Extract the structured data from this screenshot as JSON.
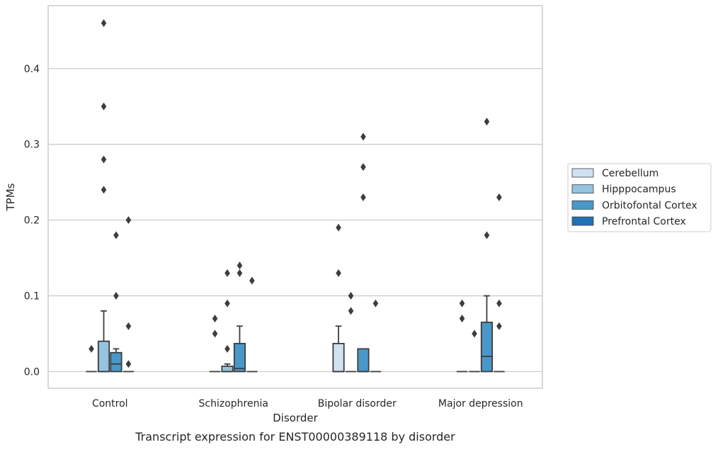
{
  "chart_data": {
    "type": "box",
    "title": "",
    "caption": "Transcript expression for ENST00000389118 by disorder",
    "xlabel": "Disorder",
    "ylabel": "TPMs",
    "ylim": [
      -0.022,
      0.483
    ],
    "yticks": [
      0.0,
      0.1,
      0.2,
      0.3,
      0.4
    ],
    "ytick_labels": [
      "0.0",
      "0.1",
      "0.2",
      "0.3",
      "0.4"
    ],
    "grid": "horizontal",
    "legend_position": "right",
    "categories": [
      "Control",
      "Schizophrenia",
      "Bipolar disorder",
      "Major depression"
    ],
    "series": [
      {
        "name": "Cerebellum",
        "color": "#d0e1f2",
        "boxes": [
          {
            "q1": 0,
            "median": 0,
            "q3": 0,
            "whisker_low": 0,
            "whisker_high": 0,
            "outliers": [
              0.03
            ]
          },
          {
            "q1": 0,
            "median": 0,
            "q3": 0,
            "whisker_low": 0,
            "whisker_high": 0,
            "outliers": [
              0.05,
              0.07
            ]
          },
          {
            "q1": 0,
            "median": 0,
            "q3": 0.037,
            "whisker_low": 0,
            "whisker_high": 0.06,
            "outliers": [
              0.13,
              0.19
            ]
          },
          {
            "q1": 0,
            "median": 0,
            "q3": 0,
            "whisker_low": 0,
            "whisker_high": 0,
            "outliers": [
              0.07,
              0.09
            ]
          }
        ]
      },
      {
        "name": "Hipppocampus",
        "color": "#94c4df",
        "boxes": [
          {
            "q1": 0,
            "median": 0,
            "q3": 0.04,
            "whisker_low": 0,
            "whisker_high": 0.08,
            "outliers": [
              0.24,
              0.28,
              0.35,
              0.46
            ]
          },
          {
            "q1": 0,
            "median": 0,
            "q3": 0.007,
            "whisker_low": 0,
            "whisker_high": 0.01,
            "outliers": [
              0.03,
              0.09,
              0.13
            ]
          },
          {
            "q1": 0,
            "median": 0,
            "q3": 0,
            "whisker_low": 0,
            "whisker_high": 0,
            "outliers": [
              0.08,
              0.1
            ]
          },
          {
            "q1": 0,
            "median": 0,
            "q3": 0,
            "whisker_low": 0,
            "whisker_high": 0,
            "outliers": [
              0.05
            ]
          }
        ]
      },
      {
        "name": "Orbitofontal Cortex",
        "color": "#4a98c9",
        "boxes": [
          {
            "q1": 0,
            "median": 0.01,
            "q3": 0.025,
            "whisker_low": 0,
            "whisker_high": 0.03,
            "outliers": [
              0.1,
              0.18
            ]
          },
          {
            "q1": 0,
            "median": 0.004,
            "q3": 0.037,
            "whisker_low": 0,
            "whisker_high": 0.06,
            "outliers": [
              0.13,
              0.14
            ]
          },
          {
            "q1": 0,
            "median": 0,
            "q3": 0.03,
            "whisker_low": 0,
            "whisker_high": 0.03,
            "outliers": [
              0.23,
              0.27,
              0.31
            ]
          },
          {
            "q1": 0,
            "median": 0.02,
            "q3": 0.065,
            "whisker_low": 0,
            "whisker_high": 0.1,
            "outliers": [
              0.18,
              0.33
            ]
          }
        ]
      },
      {
        "name": "Prefrontal Cortex",
        "color": "#2171b5",
        "boxes": [
          {
            "q1": 0,
            "median": 0,
            "q3": 0,
            "whisker_low": 0,
            "whisker_high": 0,
            "outliers": [
              0.01,
              0.06,
              0.2
            ]
          },
          {
            "q1": 0,
            "median": 0,
            "q3": 0,
            "whisker_low": 0,
            "whisker_high": 0,
            "outliers": [
              0.12
            ]
          },
          {
            "q1": 0,
            "median": 0,
            "q3": 0,
            "whisker_low": 0,
            "whisker_high": 0,
            "outliers": [
              0.09
            ]
          },
          {
            "q1": 0,
            "median": 0,
            "q3": 0,
            "whisker_low": 0,
            "whisker_high": 0,
            "outliers": [
              0.06,
              0.09,
              0.23
            ]
          }
        ]
      }
    ]
  }
}
